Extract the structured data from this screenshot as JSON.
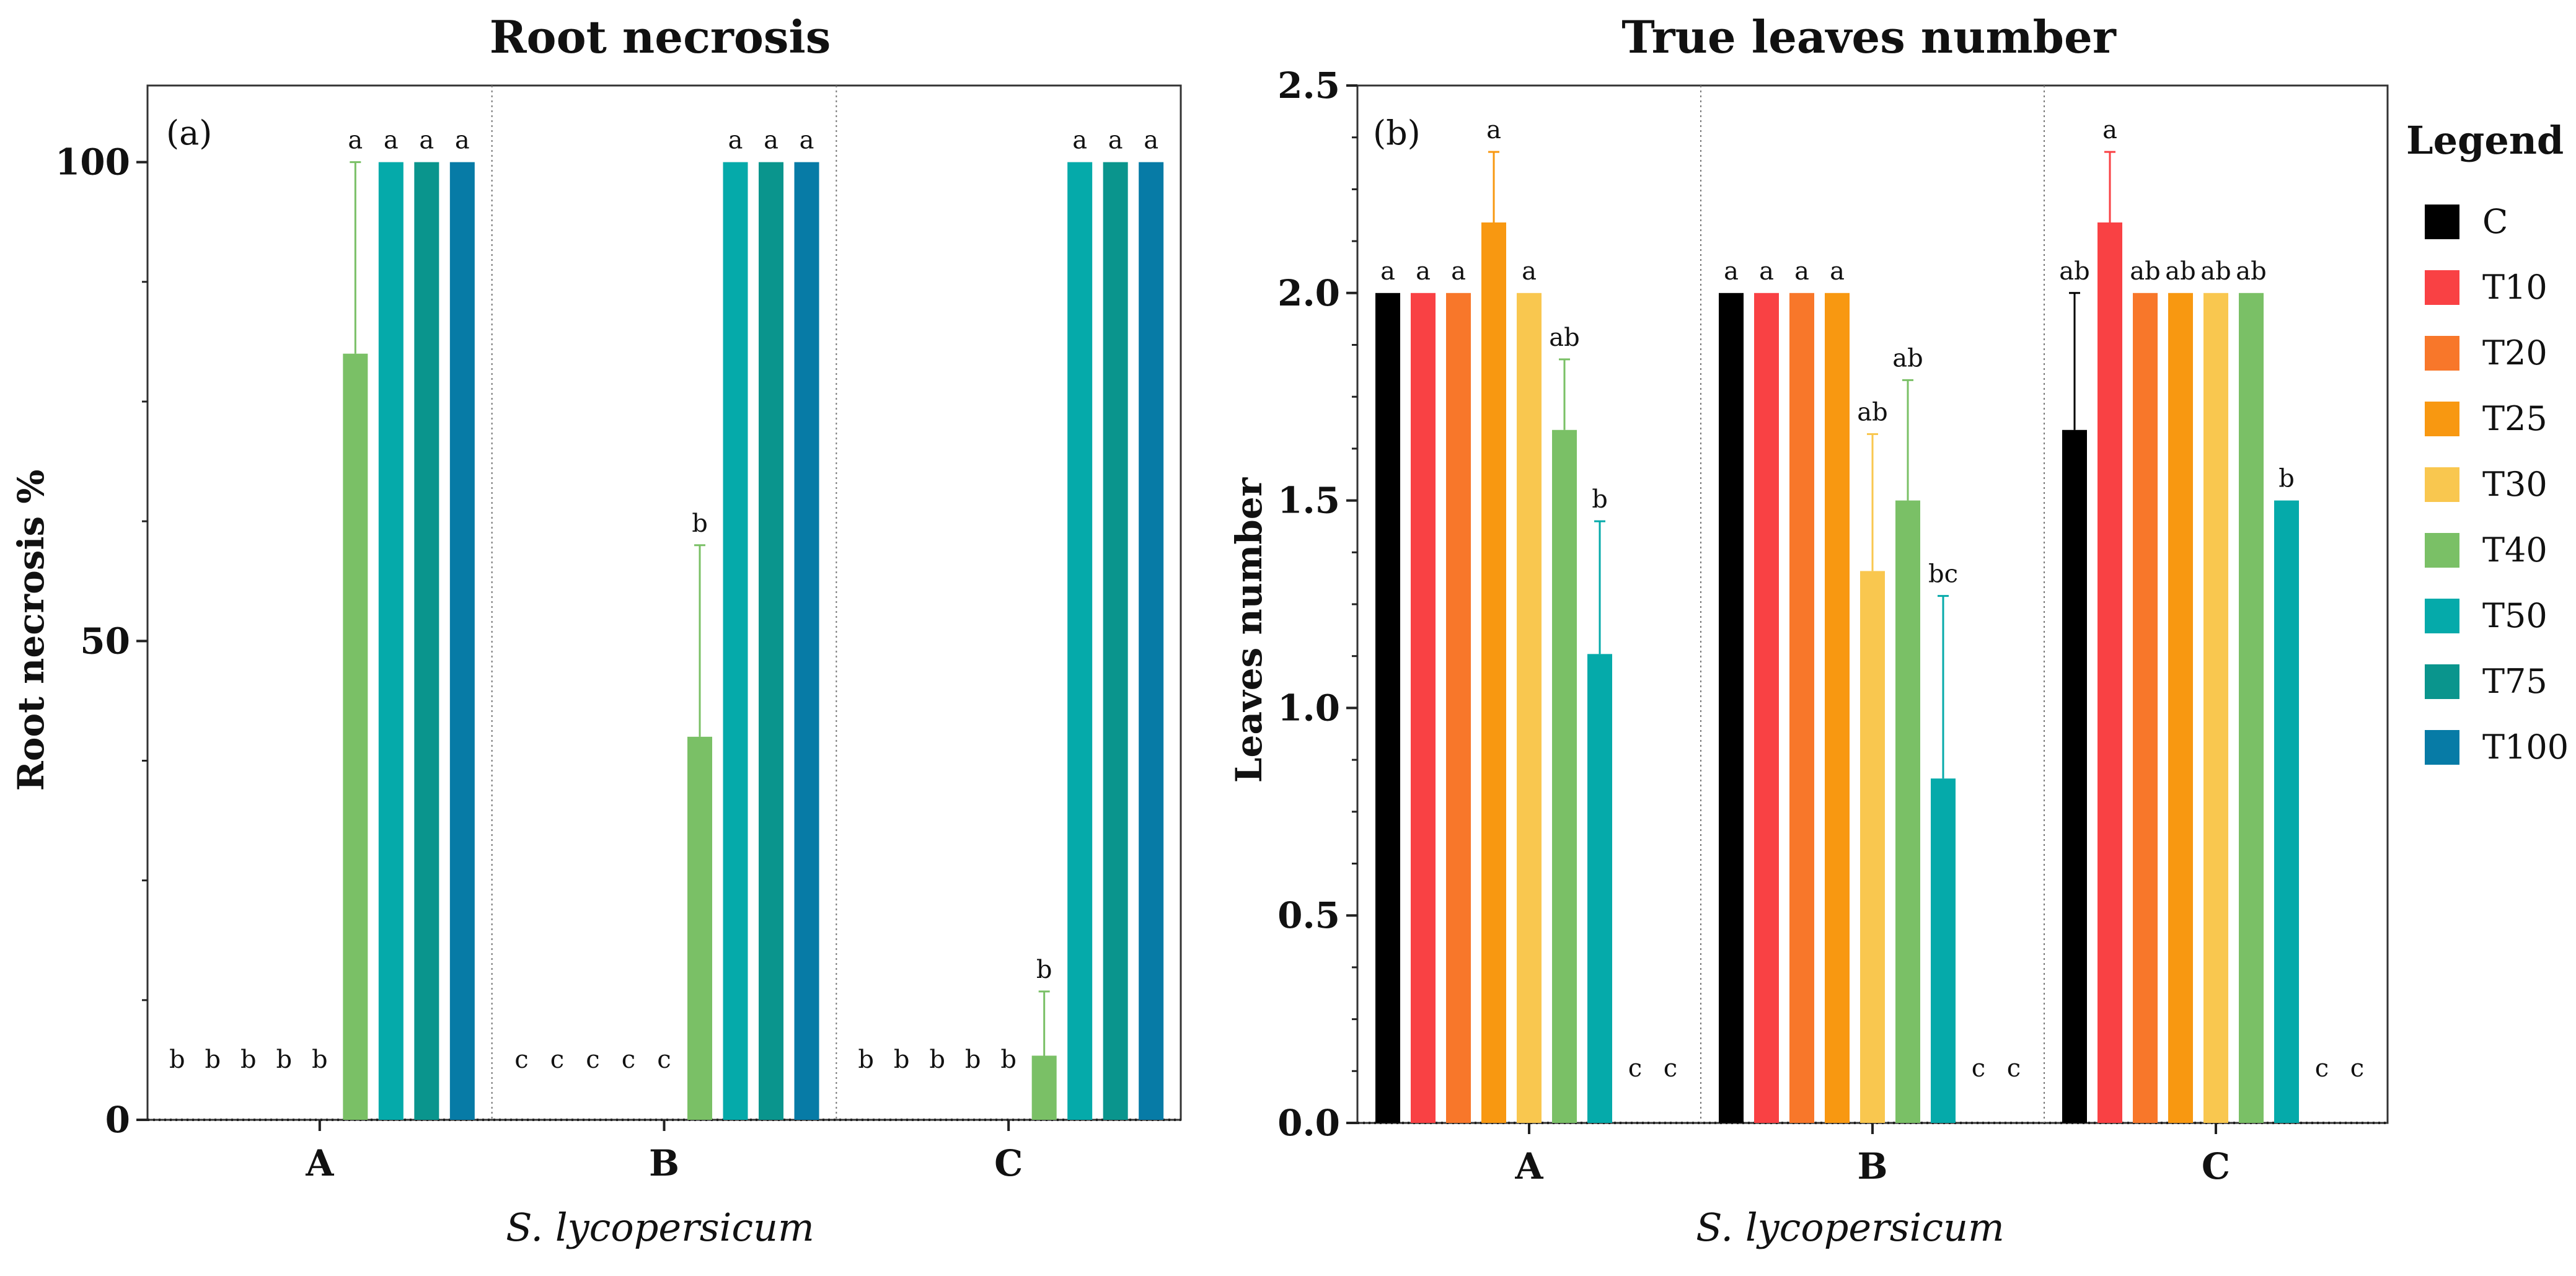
{
  "legend": {
    "title": "Legend",
    "items": [
      {
        "label": "C",
        "color": "#000000"
      },
      {
        "label": "T10",
        "color": "#f94144"
      },
      {
        "label": "T20",
        "color": "#f8772a"
      },
      {
        "label": "T25",
        "color": "#f89811"
      },
      {
        "label": "T30",
        "color": "#f9c74f"
      },
      {
        "label": "T40",
        "color": "#7ac066"
      },
      {
        "label": "T50",
        "color": "#05aaaa"
      },
      {
        "label": "T75",
        "color": "#0a958d"
      },
      {
        "label": "T100",
        "color": "#077ba6"
      }
    ]
  },
  "chart_data": [
    {
      "type": "bar",
      "title": "Root necrosis",
      "panel_label": "(a)",
      "xlabel": "S. lycopersicum",
      "ylabel": "Root necrosis %",
      "ylim": [
        0,
        108
      ],
      "yticks": [
        0,
        50,
        100
      ],
      "ytick_labels": [
        "0",
        "50",
        "100"
      ],
      "categories": [
        "A",
        "B",
        "C"
      ],
      "series": [
        {
          "name": "C",
          "values": [
            0,
            0,
            0
          ],
          "errors": [
            0,
            0,
            0
          ],
          "letters": [
            "b",
            "c",
            "b"
          ]
        },
        {
          "name": "T10",
          "values": [
            0,
            0,
            0
          ],
          "errors": [
            0,
            0,
            0
          ],
          "letters": [
            "b",
            "c",
            "b"
          ]
        },
        {
          "name": "T20",
          "values": [
            0,
            0,
            0
          ],
          "errors": [
            0,
            0,
            0
          ],
          "letters": [
            "b",
            "c",
            "b"
          ]
        },
        {
          "name": "T25",
          "values": [
            0,
            0,
            0
          ],
          "errors": [
            0,
            0,
            0
          ],
          "letters": [
            "b",
            "c",
            "b"
          ]
        },
        {
          "name": "T30",
          "values": [
            0,
            0,
            0
          ],
          "errors": [
            0,
            0,
            0
          ],
          "letters": [
            "b",
            "c",
            "b"
          ]
        },
        {
          "name": "T40",
          "values": [
            80,
            40,
            6.7
          ],
          "errors": [
            20,
            20,
            6.7
          ],
          "letters": [
            "a",
            "b",
            "b"
          ]
        },
        {
          "name": "T50",
          "values": [
            100,
            100,
            100
          ],
          "errors": [
            0,
            0,
            0
          ],
          "letters": [
            "a",
            "a",
            "a"
          ]
        },
        {
          "name": "T75",
          "values": [
            100,
            100,
            100
          ],
          "errors": [
            0,
            0,
            0
          ],
          "letters": [
            "a",
            "a",
            "a"
          ]
        },
        {
          "name": "T100",
          "values": [
            100,
            100,
            100
          ],
          "errors": [
            0,
            0,
            0
          ],
          "letters": [
            "a",
            "a",
            "a"
          ]
        }
      ]
    },
    {
      "type": "bar",
      "title": "True leaves number",
      "panel_label": "(b)",
      "xlabel": "S. lycopersicum",
      "ylabel": "Leaves number",
      "ylim": [
        0,
        2.5
      ],
      "yticks": [
        0,
        0.5,
        1,
        1.5,
        2,
        2.5
      ],
      "ytick_labels": [
        "0.0",
        "0.5",
        "1.0",
        "1.5",
        "2.0",
        "2.5"
      ],
      "categories": [
        "A",
        "B",
        "C"
      ],
      "series": [
        {
          "name": "C",
          "values": [
            2.0,
            2.0,
            1.67
          ],
          "errors": [
            0,
            0,
            0.33
          ],
          "letters": [
            "a",
            "a",
            "ab"
          ]
        },
        {
          "name": "T10",
          "values": [
            2.0,
            2.0,
            2.17
          ],
          "errors": [
            0,
            0,
            0.17
          ],
          "letters": [
            "a",
            "a",
            "a"
          ]
        },
        {
          "name": "T20",
          "values": [
            2.0,
            2.0,
            2.0
          ],
          "errors": [
            0,
            0,
            0
          ],
          "letters": [
            "a",
            "a",
            "ab"
          ]
        },
        {
          "name": "T25",
          "values": [
            2.17,
            2.0,
            2.0
          ],
          "errors": [
            0.17,
            0,
            0
          ],
          "letters": [
            "a",
            "a",
            "ab"
          ]
        },
        {
          "name": "T30",
          "values": [
            2.0,
            1.33,
            2.0
          ],
          "errors": [
            0,
            0.33,
            0
          ],
          "letters": [
            "a",
            "ab",
            "ab"
          ]
        },
        {
          "name": "T40",
          "values": [
            1.67,
            1.5,
            2.0
          ],
          "errors": [
            0.17,
            0.29,
            0
          ],
          "letters": [
            "ab",
            "ab",
            "ab"
          ]
        },
        {
          "name": "T50",
          "values": [
            1.13,
            0.83,
            1.5
          ],
          "errors": [
            0.32,
            0.44,
            0
          ],
          "letters": [
            "b",
            "bc",
            "b"
          ]
        },
        {
          "name": "T75",
          "values": [
            0,
            0,
            0
          ],
          "errors": [
            0,
            0,
            0
          ],
          "letters": [
            "c",
            "c",
            "c"
          ]
        },
        {
          "name": "T100",
          "values": [
            0,
            0,
            0
          ],
          "errors": [
            0,
            0,
            0
          ],
          "letters": [
            "c",
            "c",
            "c"
          ]
        }
      ]
    }
  ]
}
